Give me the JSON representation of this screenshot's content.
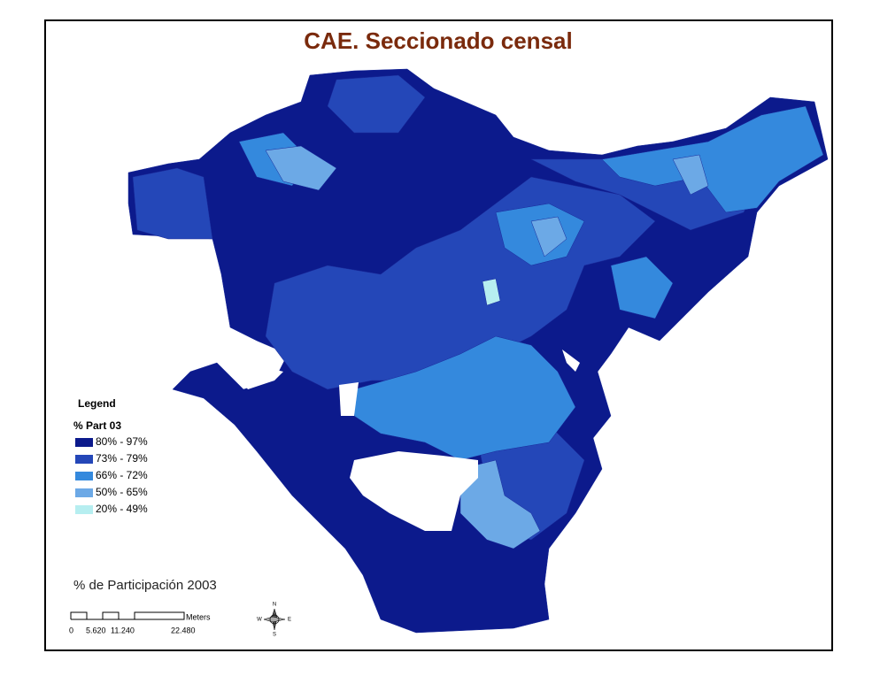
{
  "title": "CAE. Seccionado censal",
  "legend": {
    "heading": "Legend",
    "field": "% Part 03",
    "items": [
      {
        "label": "80% - 97%",
        "color": "#0c1a8c"
      },
      {
        "label": "73% - 79%",
        "color": "#2447b8"
      },
      {
        "label": "66% - 72%",
        "color": "#3489dd"
      },
      {
        "label": "50% - 65%",
        "color": "#6ca9e6"
      },
      {
        "label": "20% - 49%",
        "color": "#b6eef0"
      }
    ]
  },
  "caption": "% de Participación 2003",
  "scale_bar": {
    "unit": "Meters",
    "labels": [
      "0",
      "5.620",
      "11.240",
      "22.480"
    ]
  },
  "compass": {
    "north": "N",
    "south": "S",
    "east": "E",
    "west": "W"
  }
}
